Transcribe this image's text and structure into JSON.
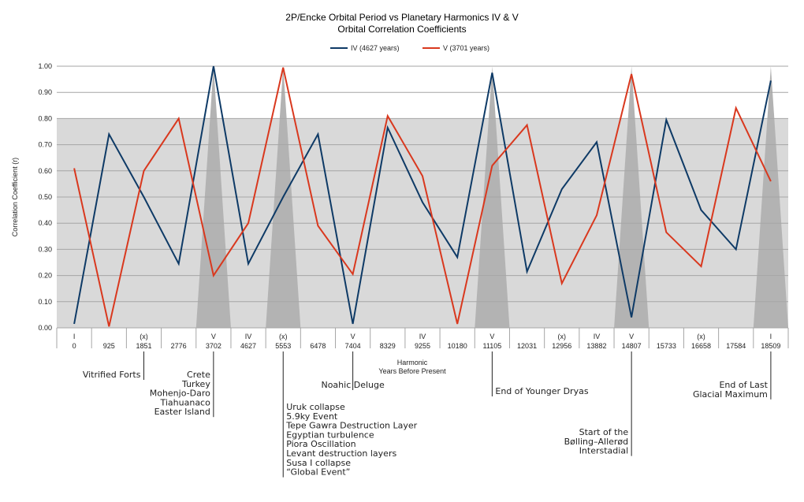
{
  "chart_data": {
    "type": "line",
    "title": "2P/Encke Orbital Period vs Planetary Harmonics IV & V",
    "subtitle": "Orbital Correlation Coefficients",
    "xlabel_line1": "Harmonic",
    "xlabel_line2": "Years Before Present",
    "ylabel": "Correlation Coefficient (r)",
    "ylim": [
      0,
      1
    ],
    "yticks": [
      "0.00",
      "0.10",
      "0.20",
      "0.30",
      "0.40",
      "0.50",
      "0.60",
      "0.70",
      "0.80",
      "0.90",
      "1.00"
    ],
    "band": [
      0,
      0.8
    ],
    "categories": [
      "0",
      "925",
      "1851",
      "2776",
      "3702",
      "4627",
      "5553",
      "6478",
      "7404",
      "8329",
      "9255",
      "10180",
      "11105",
      "12031",
      "12956",
      "13882",
      "14807",
      "15733",
      "16658",
      "17584",
      "18509"
    ],
    "harmonics": [
      "I",
      "",
      "(x)",
      "",
      "V",
      "IV",
      "(x)",
      "",
      "V",
      "",
      "IV",
      "",
      "V",
      "",
      "(x)",
      "IV",
      "V",
      "",
      "(x)",
      "",
      "I"
    ],
    "series": [
      {
        "name": "IV (4627 years)",
        "color": "#0e3a66",
        "values": [
          0.015,
          0.74,
          0.5,
          0.245,
          1.0,
          0.245,
          0.5,
          0.74,
          0.015,
          0.765,
          0.48,
          0.27,
          0.975,
          0.215,
          0.53,
          0.71,
          0.04,
          0.795,
          0.45,
          0.3,
          0.945
        ]
      },
      {
        "name": "V (3701 years)",
        "color": "#d9381e",
        "values": [
          0.61,
          0.005,
          0.6,
          0.8,
          0.2,
          0.4,
          0.995,
          0.39,
          0.205,
          0.81,
          0.58,
          0.015,
          0.62,
          0.775,
          0.17,
          0.43,
          0.97,
          0.365,
          0.235,
          0.84,
          0.56
        ]
      }
    ],
    "peaks": [
      4,
      6,
      12,
      16,
      20
    ],
    "annotations": [
      {
        "index": 2,
        "align": "end",
        "lines": [
          "Vitrified Forts"
        ]
      },
      {
        "index": 4,
        "align": "end",
        "lines": [
          "Crete",
          "Turkey",
          "Mohenjo-Daro",
          "Tiahuanaco",
          "Easter Island"
        ]
      },
      {
        "index": 6,
        "align": "start",
        "lines": [
          "Uruk collapse",
          "5.9ky Event",
          "Tepe Gawra Destruction Layer",
          "Egyptian turbulence",
          "Piora Oscillation",
          "Levant destruction layers",
          "Susa I collapse",
          "“Global Event”"
        ]
      },
      {
        "index": 8,
        "align": "middle",
        "lines": [
          "Noahic Deluge"
        ]
      },
      {
        "index": 12,
        "align": "start",
        "lines": [
          "End of Younger Dryas"
        ]
      },
      {
        "index": 16,
        "align": "end",
        "lines": [
          "Start of the",
          "Bølling–Allerød",
          "Interstadial"
        ]
      },
      {
        "index": 20,
        "align": "end",
        "lines": [
          "End of Last",
          "Glacial  Maximum"
        ]
      }
    ],
    "grid": true,
    "legend_position": "top-center"
  }
}
